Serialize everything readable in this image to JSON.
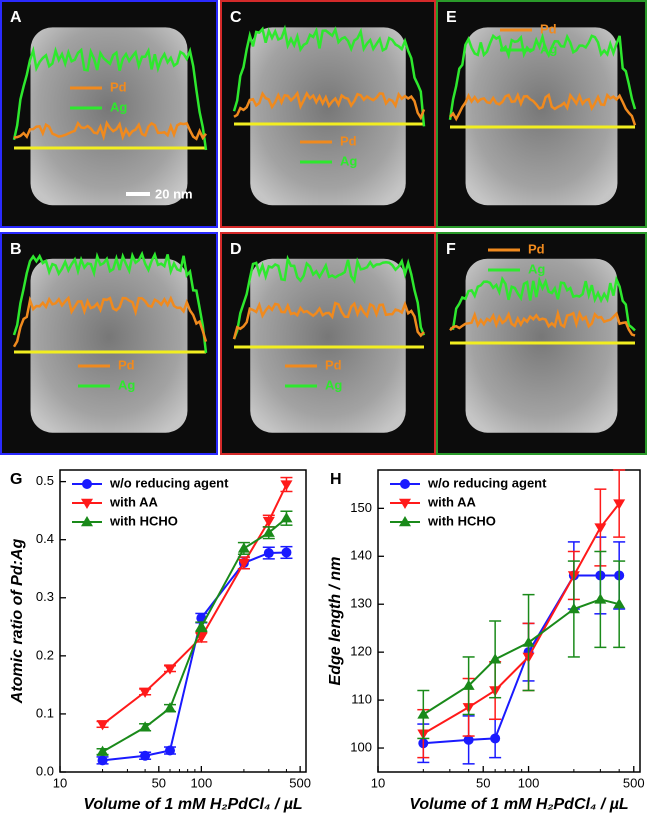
{
  "panels": [
    {
      "label": "A",
      "legend": [
        "Pd",
        "Ag"
      ],
      "scale_bar": "20 nm"
    },
    {
      "label": "C",
      "legend": [
        "Pd",
        "Ag"
      ]
    },
    {
      "label": "E",
      "legend": [
        "Pd",
        "Ag"
      ]
    },
    {
      "label": "B",
      "legend": [
        "Pd",
        "Ag"
      ]
    },
    {
      "label": "D",
      "legend": [
        "Pd",
        "Ag"
      ]
    },
    {
      "label": "F",
      "legend": [
        "Pd",
        "Ag"
      ]
    }
  ],
  "chart_data": [
    {
      "type": "line",
      "panel_label": "G",
      "xscale": "log",
      "xlabel": "Volume of 1 mM H₂PdCl₄ / µL",
      "ylabel": "Atomic ratio of Pd:Ag",
      "xlim": [
        10,
        550
      ],
      "xticks": [
        10,
        50,
        100,
        500
      ],
      "xminorticks": [
        20,
        30,
        40,
        60,
        70,
        80,
        90,
        200,
        300,
        400
      ],
      "ylim": [
        0,
        0.52
      ],
      "yticks": [
        {
          "value": 0,
          "label": "0.0"
        },
        0.1,
        0.2,
        0.3,
        0.4,
        0.5
      ],
      "legend": "upper left",
      "x": [
        20,
        40,
        60,
        100,
        200,
        300,
        400
      ],
      "series": [
        {
          "name": "w/o reducing agent",
          "color": "#1a1aff",
          "marker": "circle",
          "values": [
            0.02,
            0.028,
            0.037,
            0.265,
            0.36,
            0.377,
            0.378
          ],
          "errors": [
            0.006,
            0.006,
            0.006,
            0.008,
            0.01,
            0.01,
            0.01
          ]
        },
        {
          "name": "with AA",
          "color": "#ff1a1a",
          "marker": "triangle-down",
          "values": [
            0.082,
            0.138,
            0.178,
            0.232,
            0.36,
            0.432,
            0.495
          ],
          "errors": [
            0.005,
            0.005,
            0.005,
            0.008,
            0.01,
            0.01,
            0.012
          ]
        },
        {
          "name": "with HCHO",
          "color": "#1a8a1a",
          "marker": "triangle-up",
          "values": [
            0.035,
            0.077,
            0.11,
            0.25,
            0.385,
            0.412,
            0.437
          ],
          "errors": [
            0.005,
            0.006,
            0.006,
            0.008,
            0.01,
            0.01,
            0.012
          ]
        }
      ]
    },
    {
      "type": "line",
      "panel_label": "H",
      "xscale": "log",
      "xlabel": "Volume of 1 mM H₂PdCl₄ / µL",
      "ylabel": "Edge length / nm",
      "xlim": [
        10,
        550
      ],
      "xticks": [
        10,
        50,
        100,
        500
      ],
      "xminorticks": [
        20,
        30,
        40,
        60,
        70,
        80,
        90,
        200,
        300,
        400
      ],
      "ylim": [
        95,
        158
      ],
      "yticks": [
        100,
        110,
        120,
        130,
        140,
        150
      ],
      "legend": "upper left",
      "x": [
        20,
        40,
        60,
        100,
        200,
        300,
        400
      ],
      "series": [
        {
          "name": "w/o reducing agent",
          "color": "#1a1aff",
          "marker": "circle",
          "values": [
            101,
            101.7,
            102,
            120,
            136,
            136,
            136
          ],
          "errors": [
            4,
            5,
            4,
            6,
            7,
            8,
            7
          ]
        },
        {
          "name": "with AA",
          "color": "#ff1a1a",
          "marker": "triangle-down",
          "values": [
            103,
            108.5,
            112,
            119,
            136,
            146,
            151
          ],
          "errors": [
            5,
            6,
            6,
            7,
            5,
            8,
            7
          ]
        },
        {
          "name": "with HCHO",
          "color": "#1a8a1a",
          "marker": "triangle-up",
          "values": [
            107,
            113,
            118.5,
            122,
            129,
            131,
            130
          ],
          "errors": [
            5,
            6,
            8,
            10,
            10,
            10,
            9
          ]
        }
      ]
    }
  ]
}
